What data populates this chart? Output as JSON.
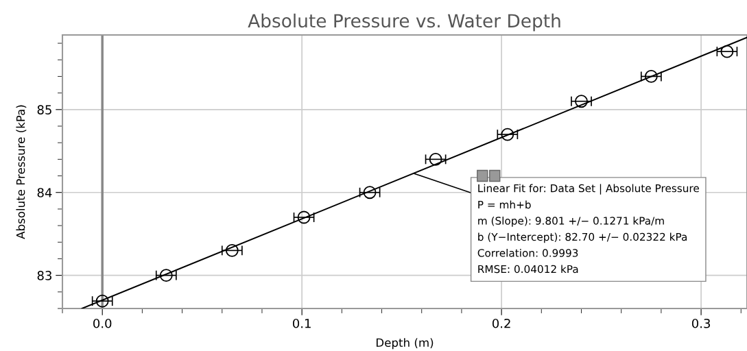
{
  "chart_data": {
    "type": "scatter",
    "title": "Absolute Pressure vs. Water Depth",
    "xlabel": "Depth (m)",
    "ylabel": "Absolute Pressure (kPa)",
    "x": [
      0.0,
      0.032,
      0.065,
      0.101,
      0.134,
      0.167,
      0.203,
      0.24,
      0.275,
      0.313
    ],
    "series": [
      {
        "color": "#000000",
        "values": [
          82.69,
          83.0,
          83.3,
          83.7,
          84.0,
          84.4,
          84.7,
          85.1,
          85.4,
          85.7
        ],
        "xerrors": [
          0.005,
          0.005,
          0.005,
          0.005,
          0.005,
          0.005,
          0.005,
          0.005,
          0.005,
          0.005
        ],
        "marker": "circle"
      },
      {
        "type": "line",
        "color": "#000000",
        "x": [
          -0.0102,
          0.323
        ],
        "values": [
          82.6,
          85.87
        ],
        "marker": "none",
        "line_style": "solid"
      }
    ],
    "xlim": [
      -0.02,
      0.323
    ],
    "ylim": [
      82.6,
      85.9
    ],
    "xticks": [
      {
        "value": -0.02,
        "label": null
      },
      {
        "value": 0.0,
        "label": "0.0"
      },
      {
        "value": 0.02,
        "label": null
      },
      {
        "value": 0.04,
        "label": null
      },
      {
        "value": 0.06,
        "label": null
      },
      {
        "value": 0.08,
        "label": null
      },
      {
        "value": 0.1,
        "label": "0.1"
      },
      {
        "value": 0.12,
        "label": null
      },
      {
        "value": 0.14,
        "label": null
      },
      {
        "value": 0.16,
        "label": null
      },
      {
        "value": 0.18,
        "label": null
      },
      {
        "value": 0.2,
        "label": "0.2"
      },
      {
        "value": 0.22,
        "label": null
      },
      {
        "value": 0.24,
        "label": null
      },
      {
        "value": 0.26,
        "label": null
      },
      {
        "value": 0.28,
        "label": null
      },
      {
        "value": 0.3,
        "label": "0.3"
      },
      {
        "value": 0.32,
        "label": null
      }
    ],
    "yticks": [
      {
        "value": 82.6,
        "label": null
      },
      {
        "value": 82.8,
        "label": null
      },
      83,
      {
        "value": 83.2,
        "label": null
      },
      {
        "value": 83.4,
        "label": null
      },
      {
        "value": 83.6,
        "label": null
      },
      {
        "value": 83.8,
        "label": null
      },
      84,
      {
        "value": 84.2,
        "label": null
      },
      {
        "value": 84.4,
        "label": null
      },
      {
        "value": 84.6,
        "label": null
      },
      {
        "value": 84.8,
        "label": null
      },
      85,
      {
        "value": 85.2,
        "label": null
      },
      {
        "value": 85.4,
        "label": null
      },
      {
        "value": 85.6,
        "label": null
      },
      {
        "value": 85.8,
        "label": null
      }
    ],
    "grid": true,
    "ref_lines": [
      {
        "axis": "x",
        "value": 0.0,
        "color": "#888888",
        "line_style": "solid"
      }
    ],
    "annotations": [
      {
        "text": "Linear Fit for: Data Set | Absolute Pressure\nP = mh+b\nm (Slope): 9.801 +/− 0.1271 kPa/m\nb (Y−Intercept): 82.70 +/− 0.02322 kPa\nCorrelation: 0.9993\nRMSE: 0.04012 kPa",
        "x": 0.156,
        "y": 84.23
      }
    ]
  }
}
